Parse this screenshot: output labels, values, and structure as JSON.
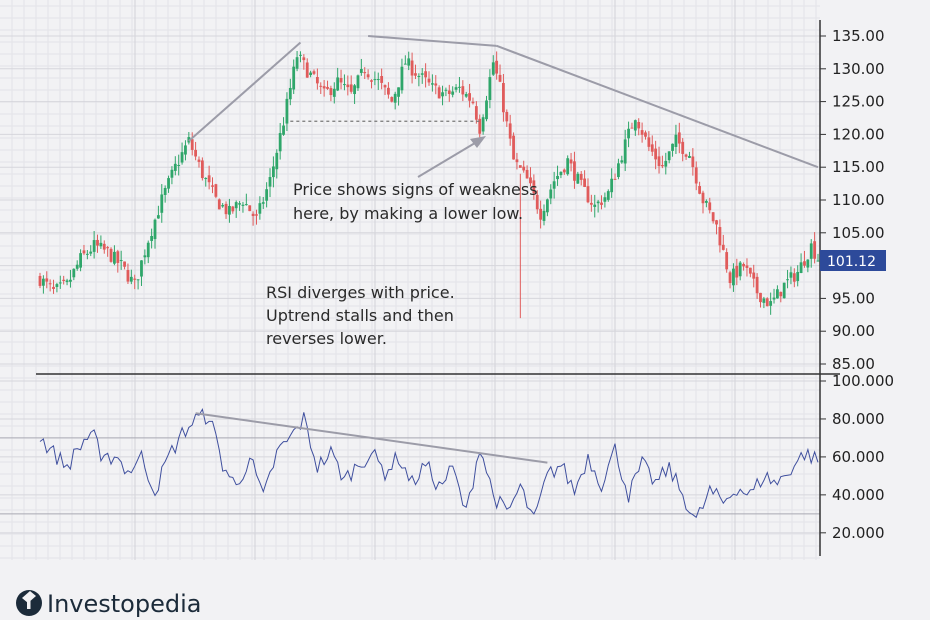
{
  "chart_data": [
    {
      "type": "candlestick",
      "panel": "price",
      "ylim": [
        85,
        135
      ],
      "y_ticks": [
        "135.00",
        "130.00",
        "125.00",
        "120.00",
        "115.00",
        "110.00",
        "105.00",
        "100.00",
        "95.00",
        "90.00",
        "85.00"
      ],
      "current_price": "101.12",
      "trend_close_anchors": [
        [
          0,
          98
        ],
        [
          4,
          96
        ],
        [
          8,
          97
        ],
        [
          12,
          101
        ],
        [
          16,
          103
        ],
        [
          20,
          102
        ],
        [
          24,
          100
        ],
        [
          28,
          97
        ],
        [
          32,
          104
        ],
        [
          36,
          110
        ],
        [
          40,
          115
        ],
        [
          44,
          119
        ],
        [
          48,
          114
        ],
        [
          52,
          110
        ],
        [
          56,
          108
        ],
        [
          60,
          110
        ],
        [
          64,
          107
        ],
        [
          68,
          113
        ],
        [
          72,
          122
        ],
        [
          76,
          132
        ],
        [
          80,
          129
        ],
        [
          84,
          126
        ],
        [
          88,
          128
        ],
        [
          92,
          126
        ],
        [
          96,
          130
        ],
        [
          100,
          128
        ],
        [
          104,
          125
        ],
        [
          108,
          131
        ],
        [
          112,
          129
        ],
        [
          116,
          127
        ],
        [
          120,
          126
        ],
        [
          124,
          127
        ],
        [
          128,
          125
        ],
        [
          130,
          121
        ],
        [
          132,
          126
        ],
        [
          134,
          131
        ],
        [
          136,
          127
        ],
        [
          140,
          116
        ],
        [
          144,
          113
        ],
        [
          148,
          108
        ],
        [
          152,
          113
        ],
        [
          156,
          116
        ],
        [
          160,
          112
        ],
        [
          164,
          109
        ],
        [
          168,
          111
        ],
        [
          172,
          117
        ],
        [
          176,
          123
        ],
        [
          180,
          118
        ],
        [
          184,
          115
        ],
        [
          188,
          119
        ],
        [
          192,
          117
        ],
        [
          196,
          110
        ],
        [
          200,
          106
        ],
        [
          204,
          98
        ],
        [
          208,
          100
        ],
        [
          212,
          96
        ],
        [
          216,
          94
        ],
        [
          220,
          97
        ],
        [
          224,
          99
        ],
        [
          228,
          103
        ],
        [
          230,
          101.12
        ]
      ],
      "wick_spike": {
        "index": 142,
        "low": 92,
        "high": 114
      },
      "annotations": [
        "Price shows signs of weakness",
        "here, by making a lower low.",
        "RSI diverges with price.",
        "Uptrend stalls and then",
        "reverses lower."
      ],
      "trendlines": [
        {
          "from": [
            44,
            119
          ],
          "to": [
            77,
            134
          ]
        },
        {
          "from": [
            97,
            135
          ],
          "to": [
            135,
            133.5
          ]
        },
        {
          "from": [
            135,
            133.5
          ],
          "to": [
            230,
            115
          ]
        }
      ],
      "support_line": {
        "from": [
          74,
          122
        ],
        "to": [
          130,
          122
        ]
      },
      "colors": {
        "up": "#2fa66a",
        "down": "#e05b5b",
        "line": "#9c9ca8",
        "badge": "#2d4a9a"
      }
    },
    {
      "type": "line",
      "panel": "RSI",
      "ylim": [
        12,
        100
      ],
      "y_ticks": [
        "100.000",
        "80.000",
        "60.000",
        "40.000",
        "20.000"
      ],
      "levels": [
        70,
        30
      ],
      "rsi_anchors": [
        [
          0,
          70
        ],
        [
          4,
          62
        ],
        [
          8,
          55
        ],
        [
          12,
          66
        ],
        [
          16,
          75
        ],
        [
          18,
          55
        ],
        [
          22,
          62
        ],
        [
          26,
          52
        ],
        [
          30,
          60
        ],
        [
          34,
          42
        ],
        [
          38,
          60
        ],
        [
          42,
          72
        ],
        [
          46,
          80
        ],
        [
          50,
          82
        ],
        [
          54,
          56
        ],
        [
          58,
          44
        ],
        [
          62,
          60
        ],
        [
          66,
          38
        ],
        [
          70,
          62
        ],
        [
          74,
          70
        ],
        [
          78,
          80
        ],
        [
          82,
          55
        ],
        [
          86,
          62
        ],
        [
          90,
          48
        ],
        [
          94,
          56
        ],
        [
          98,
          62
        ],
        [
          102,
          52
        ],
        [
          106,
          60
        ],
        [
          110,
          46
        ],
        [
          114,
          56
        ],
        [
          118,
          44
        ],
        [
          122,
          54
        ],
        [
          126,
          30
        ],
        [
          130,
          66
        ],
        [
          134,
          40
        ],
        [
          138,
          30
        ],
        [
          142,
          44
        ],
        [
          146,
          26
        ],
        [
          150,
          50
        ],
        [
          154,
          56
        ],
        [
          158,
          42
        ],
        [
          162,
          60
        ],
        [
          166,
          46
        ],
        [
          170,
          64
        ],
        [
          174,
          40
        ],
        [
          178,
          56
        ],
        [
          182,
          46
        ],
        [
          186,
          54
        ],
        [
          190,
          40
        ],
        [
          194,
          26
        ],
        [
          198,
          42
        ],
        [
          202,
          36
        ],
        [
          206,
          44
        ],
        [
          210,
          40
        ],
        [
          214,
          50
        ],
        [
          218,
          46
        ],
        [
          222,
          54
        ],
        [
          226,
          62
        ],
        [
          230,
          58
        ]
      ],
      "trendline": {
        "from": [
          46,
          83
        ],
        "to": [
          150,
          57
        ]
      },
      "colors": {
        "line": "#3f4f9e",
        "trend": "#9c9ca8"
      }
    }
  ],
  "brand": {
    "name": "Investopedia"
  }
}
